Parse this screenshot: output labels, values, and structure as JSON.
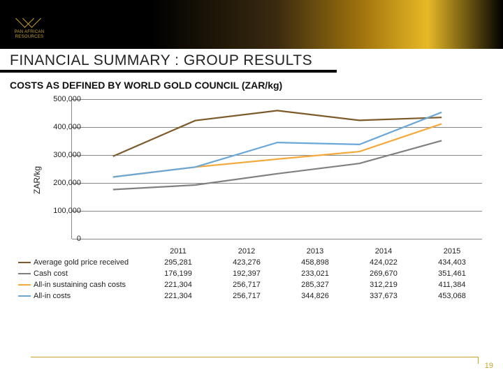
{
  "header": {
    "company_line1": "PAN AFRICAN",
    "company_line2": "RESOURCES"
  },
  "title": "FINANCIAL SUMMARY : GROUP RESULTS",
  "subtitle": "COSTS AS DEFINED BY WORLD GOLD COUNCIL (ZAR/kg)",
  "page_number": "19",
  "chart": {
    "type": "line",
    "ylabel": "ZAR/kg",
    "ylim": [
      0,
      500000
    ],
    "ytick_step": 100000,
    "yticks_labels": [
      "0",
      "100,000",
      "200,000",
      "300,000",
      "400,000",
      "500,000"
    ],
    "categories": [
      "2011",
      "2012",
      "2013",
      "2014",
      "2015"
    ],
    "grid_color": "#888888",
    "background_color": "#ffffff",
    "series": [
      {
        "name": "Average gold price received",
        "color": "#7d5a2a",
        "width": 2.2,
        "values": [
          295281,
          423276,
          458898,
          424022,
          434403
        ]
      },
      {
        "name": "Cash cost",
        "color": "#808080",
        "width": 2.2,
        "values": [
          176199,
          192397,
          233021,
          269670,
          351461
        ]
      },
      {
        "name": "All-in sustaining cash costs",
        "color": "#f4a93c",
        "width": 2.2,
        "values": [
          221304,
          256717,
          285327,
          312219,
          411384
        ]
      },
      {
        "name": "All-in costs",
        "color": "#6aa7d6",
        "width": 2.2,
        "values": [
          221304,
          256717,
          344826,
          337673,
          453068
        ]
      }
    ],
    "label_fontsize": 11,
    "tick_fontsize": 11
  },
  "table": {
    "rows": [
      {
        "label": "Average gold price received",
        "cells": [
          "295,281",
          "423,276",
          "458,898",
          "424,022",
          "434,403"
        ]
      },
      {
        "label": "Cash cost",
        "cells": [
          "176,199",
          "192,397",
          "233,021",
          "269,670",
          "351,461"
        ]
      },
      {
        "label": "All-in sustaining cash costs",
        "cells": [
          "221,304",
          "256,717",
          "285,327",
          "312,219",
          "411,384"
        ]
      },
      {
        "label": "All-in costs",
        "cells": [
          "221,304",
          "256,717",
          "344,826",
          "337,673",
          "453,068"
        ]
      }
    ]
  }
}
